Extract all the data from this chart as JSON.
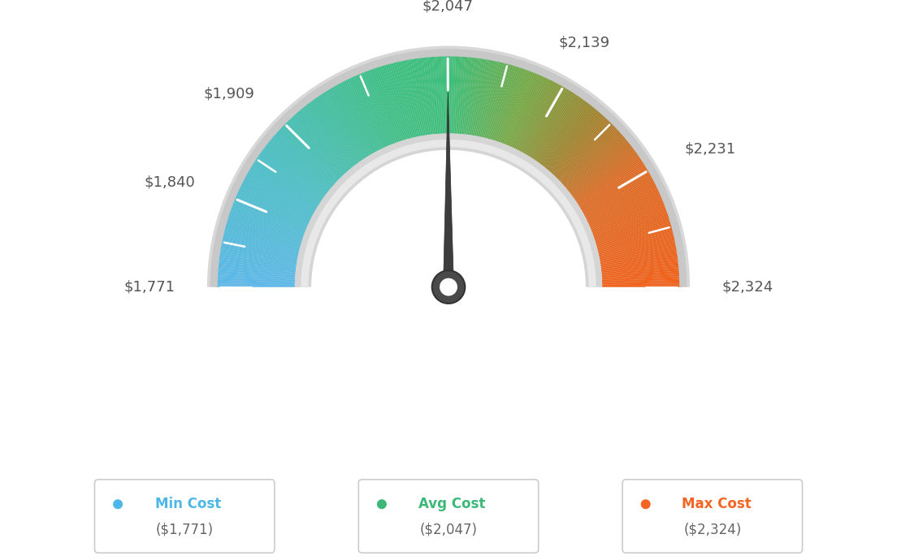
{
  "min_val": 1771,
  "avg_val": 2047,
  "max_val": 2324,
  "tick_labels": [
    "$1,771",
    "$1,840",
    "$1,909",
    "$2,047",
    "$2,139",
    "$2,231",
    "$2,324"
  ],
  "tick_values": [
    1771,
    1840,
    1909,
    2047,
    2139,
    2231,
    2324
  ],
  "legend_items": [
    {
      "label": "Min Cost",
      "value": "($1,771)",
      "color": "#4db8e8"
    },
    {
      "label": "Avg Cost",
      "value": "($2,047)",
      "color": "#3cb878"
    },
    {
      "label": "Max Cost",
      "value": "($2,324)",
      "color": "#f26522"
    }
  ],
  "background_color": "#ffffff",
  "needle_value": 2047,
  "color_stops": [
    [
      0.0,
      [
        0.353,
        0.722,
        0.918
      ]
    ],
    [
      0.2,
      [
        0.29,
        0.749,
        0.769
      ]
    ],
    [
      0.4,
      [
        0.235,
        0.749,
        0.518
      ]
    ],
    [
      0.5,
      [
        0.235,
        0.749,
        0.471
      ]
    ],
    [
      0.62,
      [
        0.463,
        0.659,
        0.263
      ]
    ],
    [
      0.72,
      [
        0.62,
        0.518,
        0.18
      ]
    ],
    [
      0.82,
      [
        0.871,
        0.42,
        0.141
      ]
    ],
    [
      1.0,
      [
        0.949,
        0.376,
        0.094
      ]
    ]
  ]
}
